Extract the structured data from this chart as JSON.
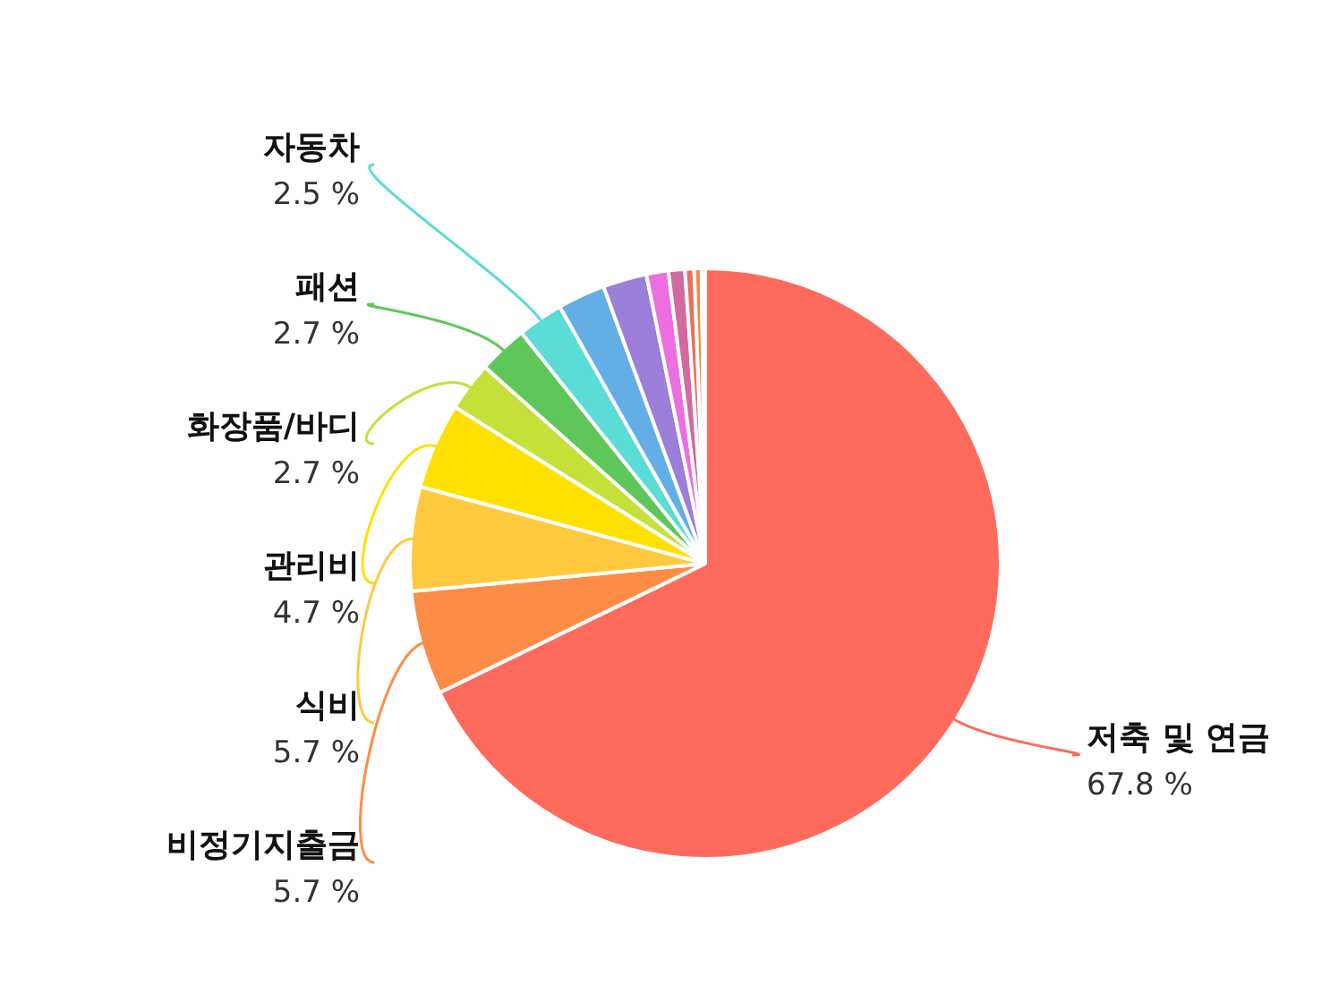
{
  "chart_data": {
    "type": "pie",
    "categories": [
      "저축 및 연금",
      "비정기지출금",
      "식비",
      "관리비",
      "화장품/바디",
      "패션",
      "자동차",
      null,
      null,
      null,
      null,
      null,
      null,
      null
    ],
    "values": [
      67.8,
      5.7,
      5.7,
      4.7,
      2.7,
      2.7,
      2.5,
      2.6,
      2.4,
      1.2,
      0.9,
      0.5,
      0.4,
      0.2
    ],
    "colors": [
      "#fe6a5c",
      "#fd8d46",
      "#ffc940",
      "#ffe100",
      "#c6e03a",
      "#5fc75a",
      "#5bdcd6",
      "#64aee6",
      "#9b7fd8",
      "#ec6ee0",
      "#d06aa0",
      "#e8705a",
      "#f08a4a",
      "#e0b080"
    ],
    "value_labels": [
      "67.8 %",
      "5.7 %",
      "5.7 %",
      "4.7 %",
      "2.7 %",
      "2.7 %",
      "2.5 %",
      null,
      null,
      null,
      null,
      null,
      null,
      null
    ],
    "legend": false
  }
}
